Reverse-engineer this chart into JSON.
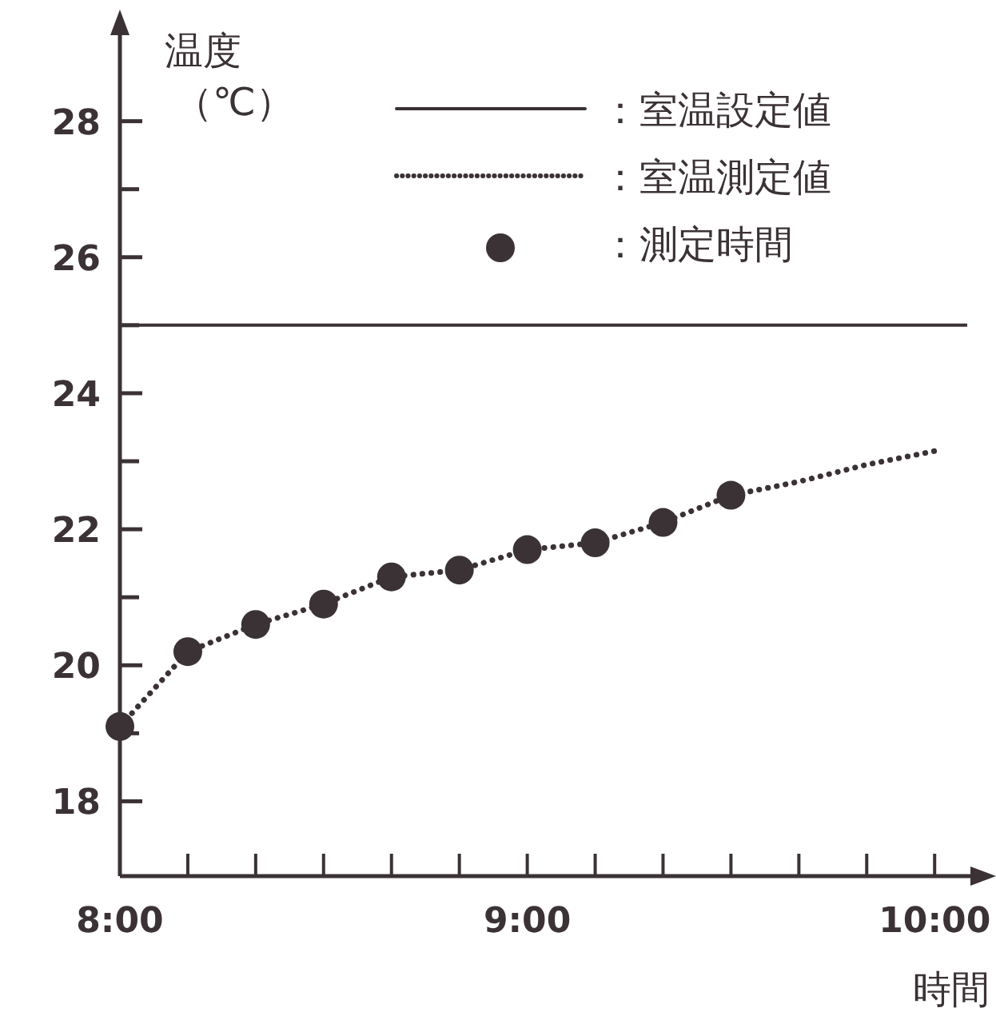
{
  "chart_data": {
    "type": "line",
    "ylabel": "温度（℃）",
    "xlabel": "時間",
    "xlim": [
      8,
      10.08
    ],
    "ylim": [
      16.9,
      29.5
    ],
    "xticks": [
      {
        "value": 8,
        "label": "8:00"
      },
      {
        "value": 8.1667,
        "label": null
      },
      {
        "value": 8.3333,
        "label": null
      },
      {
        "value": 8.5,
        "label": null
      },
      {
        "value": 8.6667,
        "label": null
      },
      {
        "value": 8.8333,
        "label": null
      },
      {
        "value": 9,
        "label": "9:00"
      },
      {
        "value": 9.1667,
        "label": null
      },
      {
        "value": 9.3333,
        "label": null
      },
      {
        "value": 9.5,
        "label": null
      },
      {
        "value": 9.6667,
        "label": null
      },
      {
        "value": 9.8333,
        "label": null
      },
      {
        "value": 10,
        "label": "10:00"
      }
    ],
    "yticks": [
      18,
      {
        "value": 19,
        "label": null
      },
      20,
      {
        "value": 21,
        "label": null
      },
      22,
      {
        "value": 23,
        "label": null
      },
      24,
      {
        "value": 25,
        "label": null
      },
      26,
      {
        "value": 27,
        "label": null
      },
      28
    ],
    "ref_lines": [
      {
        "axis": "y",
        "value": 25,
        "label": "：室温設定値",
        "color": "#3b3236",
        "line_style": "solid"
      }
    ],
    "series": [
      {
        "name": "：室温測定値",
        "color": "#3b3236",
        "line_style": "dotted",
        "marker": "none",
        "x": [
          8,
          8.1667,
          8.3333,
          8.5,
          8.6667,
          8.8333,
          9,
          9.1667,
          9.3333,
          9.5,
          9.6667,
          9.8333,
          10
        ],
        "values": [
          19.1,
          20.2,
          20.6,
          20.9,
          21.3,
          21.4,
          21.7,
          21.8,
          22.1,
          22.5,
          22.7,
          22.95,
          23.15
        ]
      },
      {
        "name": "：測定時間",
        "type": "scatter",
        "color": "#3b3236",
        "marker": "circle",
        "x": [
          8,
          8.1667,
          8.3333,
          8.5,
          8.6667,
          8.8333,
          9,
          9.1667,
          9.3333,
          9.5
        ],
        "values": [
          19.1,
          20.2,
          20.6,
          20.9,
          21.3,
          21.4,
          21.7,
          21.8,
          22.1,
          22.5
        ]
      }
    ],
    "legend": "top right",
    "grid": false
  }
}
